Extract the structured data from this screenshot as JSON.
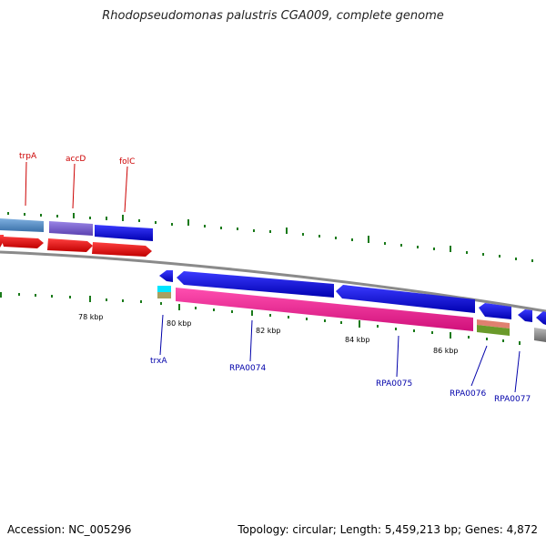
{
  "title": "Rhodopseudomonas palustris CGA009, complete genome",
  "footer": {
    "accession": "Accession: NC_005296",
    "summary": "Topology: circular; Length: 5,459,213 bp; Genes: 4,872"
  },
  "ticks": [
    "78 kbp",
    "80 kbp",
    "82 kbp",
    "84 kbp",
    "86 kbp"
  ],
  "top_labels": [
    "trpA",
    "accD",
    "folC"
  ],
  "bottom_labels": [
    "trxA",
    "RPA0074",
    "RPA0075",
    "RPA0076",
    "RPA0077"
  ],
  "colors": {
    "forward_cds": "#ff0000",
    "reverse_cds": "#0000ff",
    "top_label": "#cc0000",
    "bottom_label": "#0000aa",
    "backbone": "#888888",
    "gc_ticks": "#1a7a1a"
  }
}
